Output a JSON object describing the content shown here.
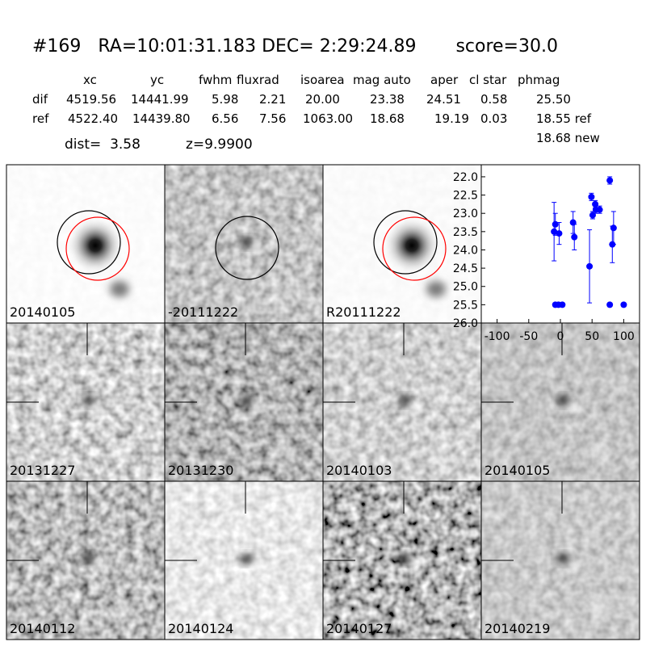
{
  "header": {
    "title": "#169   RA=10:01:31.183 DEC= 2:29:24.89       score=30.0"
  },
  "table": {
    "columns": [
      "xc",
      "yc",
      "fwhm",
      "fluxrad",
      "isoarea",
      "mag auto",
      "aper",
      "cl star",
      "phmag"
    ],
    "rows": [
      [
        "dif",
        "4519.56",
        "14441.99",
        "5.98",
        "2.21",
        "20.00",
        "23.38",
        "24.51",
        "0.58",
        "25.50"
      ],
      [
        "ref",
        "4522.40",
        "14439.80",
        "6.56",
        "7.56",
        "1063.00",
        "18.68",
        "19.19",
        "0.03",
        "18.55 ref"
      ]
    ],
    "extra": "18.68 new",
    "dist": "dist=  3.58",
    "z": "z=9.9900"
  },
  "panels": [
    {
      "label": "20140105"
    },
    {
      "label": "-20111222"
    },
    {
      "label": "R20111222"
    },
    {
      "label": "20131227"
    },
    {
      "label": "20131230"
    },
    {
      "label": "20140103"
    },
    {
      "label": "20140105",
      "color": "#ff0000"
    },
    {
      "label": "20140112"
    },
    {
      "label": "20140124"
    },
    {
      "label": "20140127"
    },
    {
      "label": "20140219"
    }
  ],
  "chart_data": {
    "type": "scatter",
    "xlim": [
      -125,
      125
    ],
    "ylim": [
      26.0,
      21.67
    ],
    "xticks": [
      -100,
      -50,
      0,
      50,
      100
    ],
    "yticks": [
      {
        "value": 22,
        "label": "22.0"
      },
      {
        "value": 22.5,
        "label": "22.5"
      },
      {
        "value": 23,
        "label": "23.0"
      },
      {
        "value": 23.5,
        "label": "23.5"
      },
      {
        "value": 24,
        "label": "24.0"
      },
      {
        "value": 24.5,
        "label": "24.5"
      },
      {
        "value": 25,
        "label": "25.0"
      },
      {
        "value": 25.5,
        "label": "25.5"
      },
      {
        "value": 26,
        "label": "26.0"
      }
    ],
    "series": [
      {
        "color": "#0000ff",
        "x": [
          -10,
          -8,
          -2,
          -8,
          -3,
          3,
          20,
          22,
          46,
          49,
          51,
          55,
          56,
          62,
          78,
          78,
          82,
          84,
          100
        ],
        "values": [
          23.5,
          23.3,
          23.55,
          25.5,
          25.5,
          25.5,
          23.25,
          23.65,
          24.45,
          22.55,
          23.05,
          22.75,
          22.9,
          22.9,
          22.1,
          25.5,
          23.85,
          23.4,
          25.5
        ],
        "errors": [
          0.8,
          0.3,
          0.3,
          0.05,
          0.05,
          0.05,
          0.3,
          0.35,
          1.0,
          0.1,
          0.1,
          0.1,
          0.1,
          0.1,
          0.1,
          0.05,
          0.5,
          0.45,
          0.05
        ]
      }
    ]
  }
}
